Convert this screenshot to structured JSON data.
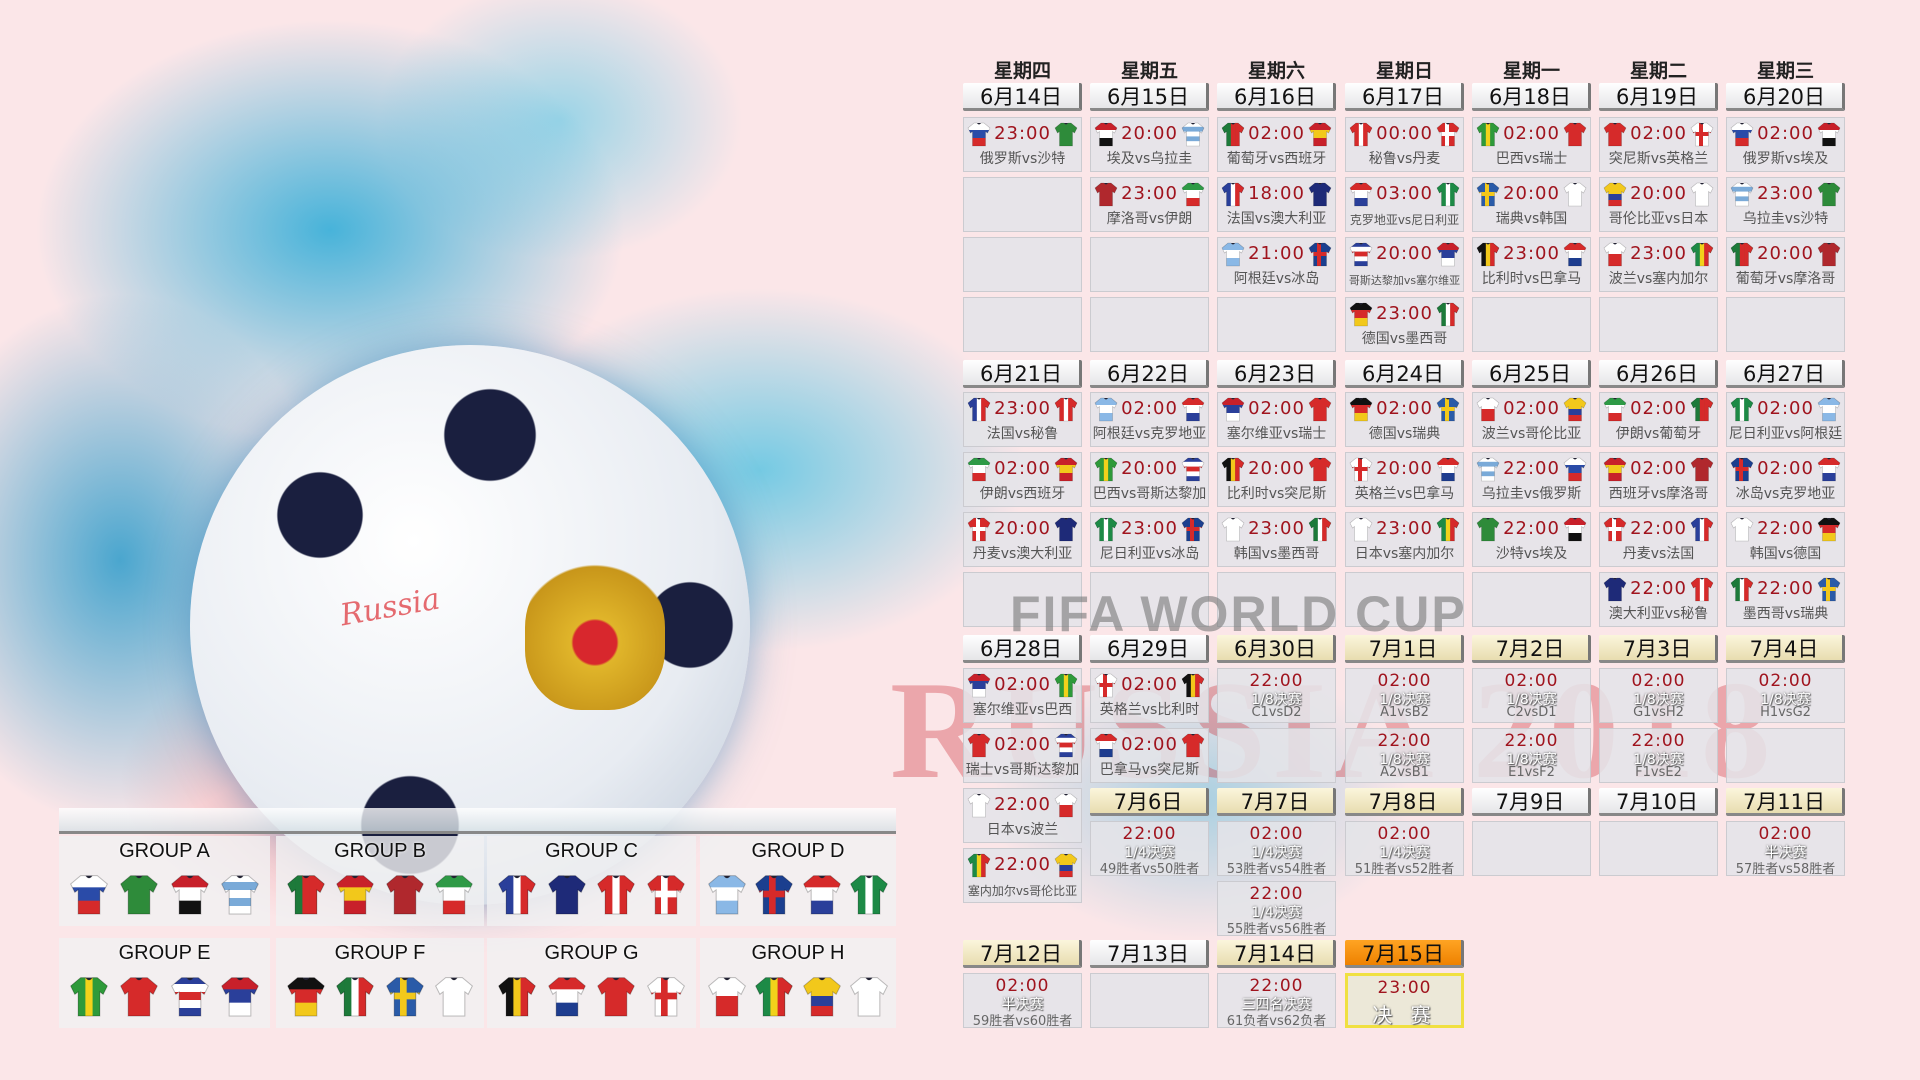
{
  "watermark": {
    "line1": "FIFA WORLD CUP",
    "line2": "RUSSIA 2018",
    "ball_text": "Russia"
  },
  "weekdays": [
    "星期四",
    "星期五",
    "星期六",
    "星期日",
    "星期一",
    "星期二",
    "星期三"
  ],
  "colors": {
    "time": "#a0141e",
    "highlight_gold": "#efe6c0",
    "final_orange": "#f39a1a"
  },
  "teams": {
    "俄罗斯": {
      "p": "h",
      "c": [
        "#ffffff",
        "#2a4ba8",
        "#d62a2a"
      ]
    },
    "沙特": {
      "p": "h",
      "c": [
        "#2e8b3a"
      ]
    },
    "埃及": {
      "p": "h",
      "c": [
        "#c8202a",
        "#ffffff",
        "#111111"
      ]
    },
    "乌拉圭": {
      "p": "h",
      "c": [
        "#ffffff",
        "#7aaad8",
        "#ffffff",
        "#7aaad8",
        "#ffffff"
      ]
    },
    "摩洛哥": {
      "p": "h",
      "c": [
        "#b0282d"
      ]
    },
    "伊朗": {
      "p": "h",
      "c": [
        "#2e9a46",
        "#ffffff",
        "#d62a2a"
      ]
    },
    "葡萄牙": {
      "p": "v",
      "c": [
        "#1d7a3a",
        "#d62a2a",
        "#d62a2a"
      ]
    },
    "西班牙": {
      "p": "h",
      "c": [
        "#c8202a",
        "#f2c81b",
        "#c8202a"
      ]
    },
    "法国": {
      "p": "v",
      "c": [
        "#2a3f9a",
        "#ffffff",
        "#d62a2a"
      ]
    },
    "澳大利亚": {
      "p": "h",
      "c": [
        "#1e2a78"
      ]
    },
    "秘鲁": {
      "p": "v",
      "c": [
        "#d62a2a",
        "#ffffff",
        "#d62a2a"
      ]
    },
    "丹麦": {
      "p": "x",
      "c": [
        "#d62a2a",
        "#ffffff"
      ]
    },
    "冰岛": {
      "p": "x",
      "c": [
        "#1b3f8f",
        "#d62a2a"
      ]
    },
    "英格兰": {
      "p": "x",
      "c": [
        "#ffffff",
        "#d62a2a"
      ]
    },
    "阿根廷": {
      "p": "h",
      "c": [
        "#8ab8e6",
        "#ffffff",
        "#8ab8e6"
      ]
    },
    "克罗地亚": {
      "p": "h",
      "c": [
        "#d62a2a",
        "#ffffff",
        "#2a3f9a"
      ]
    },
    "尼日利亚": {
      "p": "v",
      "c": [
        "#1d8a46",
        "#ffffff",
        "#1d8a46"
      ]
    },
    "巴西": {
      "p": "v",
      "c": [
        "#2e9a3a",
        "#f2d21b",
        "#2e9a3a"
      ]
    },
    "瑞士": {
      "p": "h",
      "c": [
        "#d62a2a"
      ]
    },
    "哥斯达黎加": {
      "p": "h",
      "c": [
        "#2a3f9a",
        "#ffffff",
        "#d62a2a",
        "#ffffff",
        "#2a3f9a"
      ]
    },
    "塞尔维亚": {
      "p": "h",
      "c": [
        "#c8202a",
        "#2a3f9a",
        "#ffffff"
      ]
    },
    "德国": {
      "p": "h",
      "c": [
        "#111111",
        "#d62a2a",
        "#f2c81b"
      ]
    },
    "墨西哥": {
      "p": "v",
      "c": [
        "#1d7a3a",
        "#ffffff",
        "#d62a2a"
      ]
    },
    "瑞典": {
      "p": "x",
      "c": [
        "#2a5ba8",
        "#f2c81b"
      ]
    },
    "韩国": {
      "p": "h",
      "c": [
        "#ffffff"
      ]
    },
    "比利时": {
      "p": "v",
      "c": [
        "#111111",
        "#f2c81b",
        "#d62a2a"
      ]
    },
    "巴拿马": {
      "p": "h",
      "c": [
        "#d62a2a",
        "#ffffff",
        "#1e3d8f"
      ]
    },
    "突尼斯": {
      "p": "h",
      "c": [
        "#d62a2a"
      ]
    },
    "波兰": {
      "p": "h",
      "c": [
        "#ffffff",
        "#d62a2a"
      ]
    },
    "塞内加尔": {
      "p": "v",
      "c": [
        "#1d8a46",
        "#f2d21b",
        "#d62a2a"
      ]
    },
    "哥伦比亚": {
      "p": "h",
      "c": [
        "#f2c81b",
        "#f2c81b",
        "#2a3f9a",
        "#d62a2a"
      ]
    },
    "日本": {
      "p": "h",
      "c": [
        "#ffffff"
      ]
    }
  },
  "days": [
    {
      "date": "6月14日",
      "matches": [
        {
          "time": "23:00",
          "teams": [
            "俄罗斯",
            "沙特"
          ],
          "label": "俄罗斯vs沙特"
        }
      ]
    },
    {
      "date": "6月15日",
      "matches": [
        {
          "time": "20:00",
          "teams": [
            "埃及",
            "乌拉圭"
          ],
          "label": "埃及vs乌拉圭"
        },
        {
          "time": "23:00",
          "teams": [
            "摩洛哥",
            "伊朗"
          ],
          "label": "摩洛哥vs伊朗"
        }
      ]
    },
    {
      "date": "6月16日",
      "matches": [
        {
          "time": "02:00",
          "teams": [
            "葡萄牙",
            "西班牙"
          ],
          "label": "葡萄牙vs西班牙"
        },
        {
          "time": "18:00",
          "teams": [
            "法国",
            "澳大利亚"
          ],
          "label": "法国vs澳大利亚"
        },
        {
          "time": "21:00",
          "teams": [
            "阿根廷",
            "冰岛"
          ],
          "label": "阿根廷vs冰岛"
        }
      ]
    },
    {
      "date": "6月17日",
      "matches": [
        {
          "time": "00:00",
          "teams": [
            "秘鲁",
            "丹麦"
          ],
          "label": "秘鲁vs丹麦"
        },
        {
          "time": "03:00",
          "teams": [
            "克罗地亚",
            "尼日利亚"
          ],
          "label": "克罗地亚vs尼日利亚"
        },
        {
          "time": "20:00",
          "teams": [
            "哥斯达黎加",
            "塞尔维亚"
          ],
          "label": "哥斯达黎加vs塞尔维亚"
        },
        {
          "time": "23:00",
          "teams": [
            "德国",
            "墨西哥"
          ],
          "label": "德国vs墨西哥"
        }
      ]
    },
    {
      "date": "6月18日",
      "matches": [
        {
          "time": "02:00",
          "teams": [
            "巴西",
            "瑞士"
          ],
          "label": "巴西vs瑞士"
        },
        {
          "time": "20:00",
          "teams": [
            "瑞典",
            "韩国"
          ],
          "label": "瑞典vs韩国"
        },
        {
          "time": "23:00",
          "teams": [
            "比利时",
            "巴拿马"
          ],
          "label": "比利时vs巴拿马"
        }
      ]
    },
    {
      "date": "6月19日",
      "matches": [
        {
          "time": "02:00",
          "teams": [
            "突尼斯",
            "英格兰"
          ],
          "label": "突尼斯vs英格兰"
        },
        {
          "time": "20:00",
          "teams": [
            "哥伦比亚",
            "日本"
          ],
          "label": "哥伦比亚vs日本"
        },
        {
          "time": "23:00",
          "teams": [
            "波兰",
            "塞内加尔"
          ],
          "label": "波兰vs塞内加尔"
        }
      ]
    },
    {
      "date": "6月20日",
      "matches": [
        {
          "time": "02:00",
          "teams": [
            "俄罗斯",
            "埃及"
          ],
          "label": "俄罗斯vs埃及"
        },
        {
          "time": "23:00",
          "teams": [
            "乌拉圭",
            "沙特"
          ],
          "label": "乌拉圭vs沙特"
        },
        {
          "time": "20:00",
          "teams": [
            "葡萄牙",
            "摩洛哥"
          ],
          "label": "葡萄牙vs摩洛哥"
        }
      ]
    },
    {
      "date": "6月21日",
      "matches": [
        {
          "time": "23:00",
          "teams": [
            "法国",
            "秘鲁"
          ],
          "label": "法国vs秘鲁"
        },
        {
          "time": "02:00",
          "teams": [
            "伊朗",
            "西班牙"
          ],
          "label": "伊朗vs西班牙"
        },
        {
          "time": "20:00",
          "teams": [
            "丹麦",
            "澳大利亚"
          ],
          "label": "丹麦vs澳大利亚"
        }
      ]
    },
    {
      "date": "6月22日",
      "matches": [
        {
          "time": "02:00",
          "teams": [
            "阿根廷",
            "克罗地亚"
          ],
          "label": "阿根廷vs克罗地亚"
        },
        {
          "time": "20:00",
          "teams": [
            "巴西",
            "哥斯达黎加"
          ],
          "label": "巴西vs哥斯达黎加"
        },
        {
          "time": "23:00",
          "teams": [
            "尼日利亚",
            "冰岛"
          ],
          "label": "尼日利亚vs冰岛"
        }
      ]
    },
    {
      "date": "6月23日",
      "matches": [
        {
          "time": "02:00",
          "teams": [
            "塞尔维亚",
            "瑞士"
          ],
          "label": "塞尔维亚vs瑞士"
        },
        {
          "time": "20:00",
          "teams": [
            "比利时",
            "突尼斯"
          ],
          "label": "比利时vs突尼斯"
        },
        {
          "time": "23:00",
          "teams": [
            "韩国",
            "墨西哥"
          ],
          "label": "韩国vs墨西哥"
        }
      ]
    },
    {
      "date": "6月24日",
      "matches": [
        {
          "time": "02:00",
          "teams": [
            "德国",
            "瑞典"
          ],
          "label": "德国vs瑞典"
        },
        {
          "time": "20:00",
          "teams": [
            "英格兰",
            "巴拿马"
          ],
          "label": "英格兰vs巴拿马"
        },
        {
          "time": "23:00",
          "teams": [
            "日本",
            "塞内加尔"
          ],
          "label": "日本vs塞内加尔"
        }
      ]
    },
    {
      "date": "6月25日",
      "matches": [
        {
          "time": "02:00",
          "teams": [
            "波兰",
            "哥伦比亚"
          ],
          "label": "波兰vs哥伦比亚"
        },
        {
          "time": "22:00",
          "teams": [
            "乌拉圭",
            "俄罗斯"
          ],
          "label": "乌拉圭vs俄罗斯"
        },
        {
          "time": "22:00",
          "teams": [
            "沙特",
            "埃及"
          ],
          "label": "沙特vs埃及"
        }
      ]
    },
    {
      "date": "6月26日",
      "matches": [
        {
          "time": "02:00",
          "teams": [
            "伊朗",
            "葡萄牙"
          ],
          "label": "伊朗vs葡萄牙"
        },
        {
          "time": "02:00",
          "teams": [
            "西班牙",
            "摩洛哥"
          ],
          "label": "西班牙vs摩洛哥"
        },
        {
          "time": "22:00",
          "teams": [
            "丹麦",
            "法国"
          ],
          "label": "丹麦vs法国"
        },
        {
          "time": "22:00",
          "teams": [
            "澳大利亚",
            "秘鲁"
          ],
          "label": "澳大利亚vs秘鲁"
        }
      ]
    },
    {
      "date": "6月27日",
      "matches": [
        {
          "time": "02:00",
          "teams": [
            "尼日利亚",
            "阿根廷"
          ],
          "label": "尼日利亚vs阿根廷"
        },
        {
          "time": "02:00",
          "teams": [
            "冰岛",
            "克罗地亚"
          ],
          "label": "冰岛vs克罗地亚"
        },
        {
          "time": "22:00",
          "teams": [
            "韩国",
            "德国"
          ],
          "label": "韩国vs德国"
        },
        {
          "time": "22:00",
          "teams": [
            "墨西哥",
            "瑞典"
          ],
          "label": "墨西哥vs瑞典"
        }
      ]
    },
    {
      "date": "6月28日",
      "matches": [
        {
          "time": "02:00",
          "teams": [
            "塞尔维亚",
            "巴西"
          ],
          "label": "塞尔维亚vs巴西"
        },
        {
          "time": "02:00",
          "teams": [
            "瑞士",
            "哥斯达黎加"
          ],
          "label": "瑞士vs哥斯达黎加"
        },
        {
          "time": "22:00",
          "teams": [
            "日本",
            "波兰"
          ],
          "label": "日本vs波兰"
        },
        {
          "time": "22:00",
          "teams": [
            "塞内加尔",
            "哥伦比亚"
          ],
          "label": "塞内加尔vs哥伦比亚"
        }
      ]
    },
    {
      "date": "6月29日",
      "matches": [
        {
          "time": "02:00",
          "teams": [
            "英格兰",
            "比利时"
          ],
          "label": "英格兰vs比利时"
        },
        {
          "time": "02:00",
          "teams": [
            "巴拿马",
            "突尼斯"
          ],
          "label": "巴拿马vs突尼斯"
        }
      ]
    },
    {
      "date": "6月30日",
      "highlight": "gold",
      "matches": [
        {
          "time": "22:00",
          "stage": "1/8决赛",
          "pairing": "C1vsD2"
        }
      ]
    },
    {
      "date": "7月1日",
      "highlight": "gold",
      "matches": [
        {
          "time": "02:00",
          "stage": "1/8决赛",
          "pairing": "A1vsB2"
        },
        {
          "time": "22:00",
          "stage": "1/8决赛",
          "pairing": "A2vsB1"
        }
      ]
    },
    {
      "date": "7月2日",
      "highlight": "gold",
      "matches": [
        {
          "time": "02:00",
          "stage": "1/8决赛",
          "pairing": "C2vsD1"
        },
        {
          "time": "22:00",
          "stage": "1/8决赛",
          "pairing": "E1vsF2"
        }
      ]
    },
    {
      "date": "7月3日",
      "highlight": "gold",
      "matches": [
        {
          "time": "02:00",
          "stage": "1/8决赛",
          "pairing": "G1vsH2"
        },
        {
          "time": "22:00",
          "stage": "1/8决赛",
          "pairing": "F1vsE2"
        }
      ]
    },
    {
      "date": "7月4日",
      "highlight": "gold",
      "matches": [
        {
          "time": "02:00",
          "stage": "1/8决赛",
          "pairing": "H1vsG2"
        }
      ]
    },
    {
      "date": "7月6日",
      "highlight": "gold",
      "matches": [
        {
          "time": "22:00",
          "stage": "1/4决赛",
          "pairing": "49胜者vs50胜者"
        }
      ]
    },
    {
      "date": "7月7日",
      "highlight": "gold",
      "matches": [
        {
          "time": "02:00",
          "stage": "1/4决赛",
          "pairing": "53胜者vs54胜者"
        },
        {
          "time": "22:00",
          "stage": "1/4决赛",
          "pairing": "55胜者vs56胜者"
        }
      ]
    },
    {
      "date": "7月8日",
      "highlight": "gold",
      "matches": [
        {
          "time": "02:00",
          "stage": "1/4决赛",
          "pairing": "51胜者vs52胜者"
        }
      ]
    },
    {
      "date": "7月9日",
      "matches": []
    },
    {
      "date": "7月10日",
      "matches": []
    },
    {
      "date": "7月11日",
      "highlight": "gold",
      "matches": [
        {
          "time": "02:00",
          "stage": "半决赛",
          "pairing": "57胜者vs58胜者"
        }
      ]
    },
    {
      "date": "7月12日",
      "highlight": "gold",
      "matches": [
        {
          "time": "02:00",
          "stage": "半决赛",
          "pairing": "59胜者vs60胜者"
        }
      ]
    },
    {
      "date": "7月13日",
      "matches": []
    },
    {
      "date": "7月14日",
      "highlight": "gold",
      "matches": [
        {
          "time": "22:00",
          "stage": "三四名决赛",
          "pairing": "61负者vs62负者"
        }
      ]
    },
    {
      "date": "7月15日",
      "highlight": "orange",
      "final": true,
      "matches": [
        {
          "time": "23:00",
          "stage": "决 赛"
        }
      ]
    }
  ],
  "groups": [
    {
      "name": "GROUP A",
      "teams": [
        "俄罗斯",
        "沙特",
        "埃及",
        "乌拉圭"
      ]
    },
    {
      "name": "GROUP B",
      "teams": [
        "葡萄牙",
        "西班牙",
        "摩洛哥",
        "伊朗"
      ]
    },
    {
      "name": "GROUP C",
      "teams": [
        "法国",
        "澳大利亚",
        "秘鲁",
        "丹麦"
      ]
    },
    {
      "name": "GROUP D",
      "teams": [
        "阿根廷",
        "冰岛",
        "克罗地亚",
        "尼日利亚"
      ]
    },
    {
      "name": "GROUP E",
      "teams": [
        "巴西",
        "瑞士",
        "哥斯达黎加",
        "塞尔维亚"
      ]
    },
    {
      "name": "GROUP F",
      "teams": [
        "德国",
        "墨西哥",
        "瑞典",
        "韩国"
      ]
    },
    {
      "name": "GROUP G",
      "teams": [
        "比利时",
        "巴拿马",
        "突尼斯",
        "英格兰"
      ]
    },
    {
      "name": "GROUP H",
      "teams": [
        "波兰",
        "塞内加尔",
        "哥伦比亚",
        "日本"
      ]
    }
  ]
}
